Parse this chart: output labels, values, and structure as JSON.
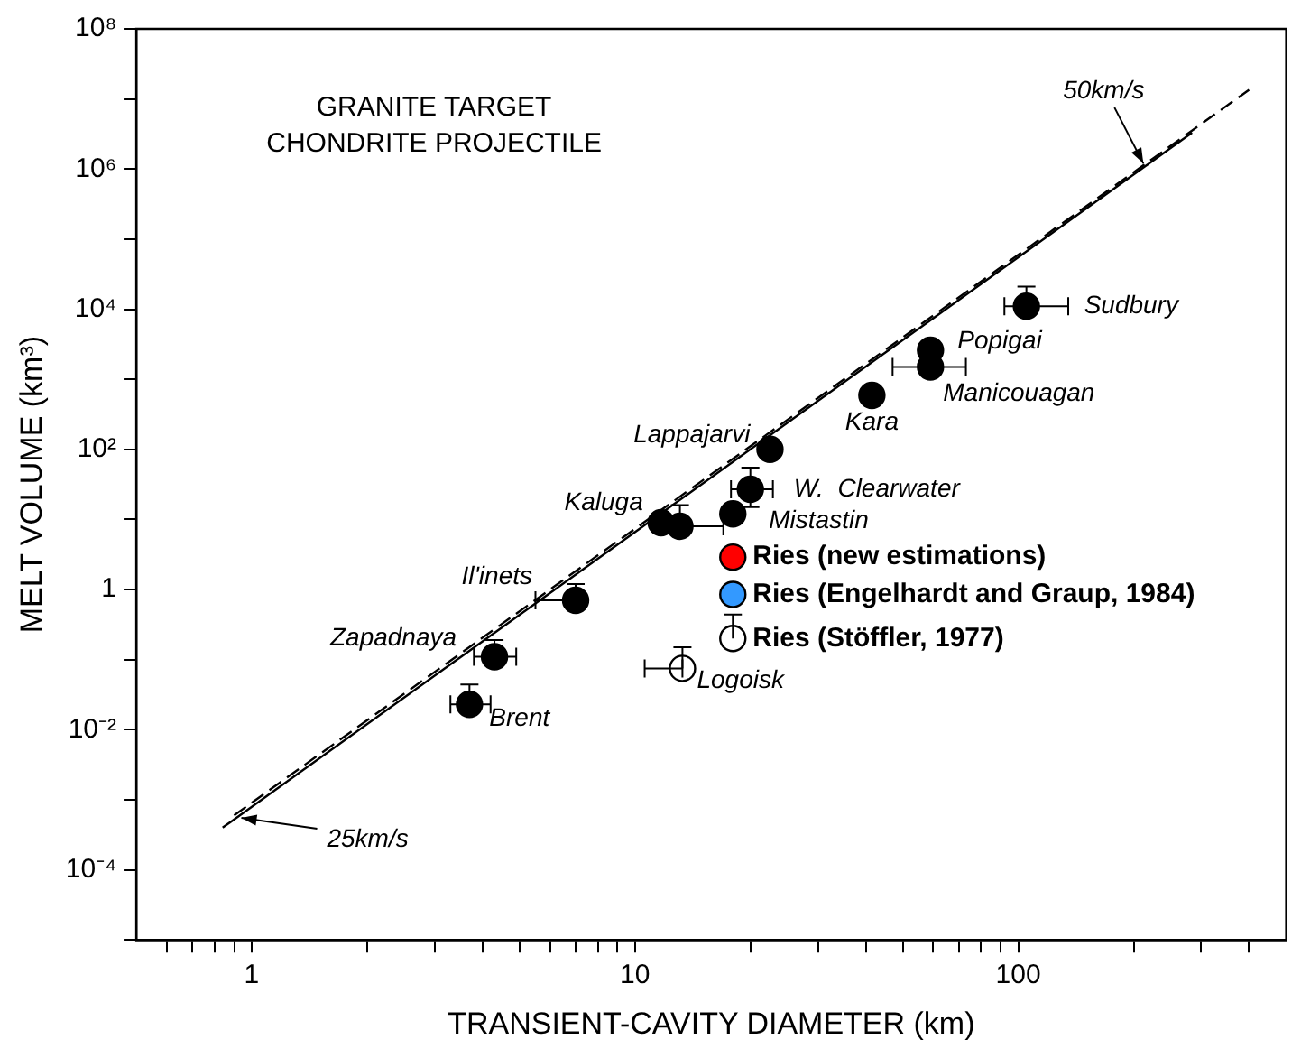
{
  "chart_data": {
    "type": "scatter",
    "xlabel": "TRANSIENT-CAVITY DIAMETER (km)",
    "ylabel": "MELT VOLUME (km³)",
    "log": "xy",
    "grid": false,
    "legend": false,
    "marker": "circle",
    "xlim": [
      0.5,
      500
    ],
    "ylim": [
      1e-05,
      100000000
    ],
    "xticks": [
      {
        "value": 0.6,
        "label": null
      },
      {
        "value": 0.7,
        "label": null
      },
      {
        "value": 0.8,
        "label": null
      },
      {
        "value": 0.9,
        "label": null
      },
      1,
      {
        "value": 2,
        "label": null
      },
      {
        "value": 3,
        "label": null
      },
      {
        "value": 4,
        "label": null
      },
      {
        "value": 5,
        "label": null
      },
      {
        "value": 6,
        "label": null
      },
      {
        "value": 7,
        "label": null
      },
      {
        "value": 8,
        "label": null
      },
      {
        "value": 9,
        "label": null
      },
      10,
      {
        "value": 20,
        "label": null
      },
      {
        "value": 30,
        "label": null
      },
      {
        "value": 40,
        "label": null
      },
      {
        "value": 50,
        "label": null
      },
      {
        "value": 60,
        "label": null
      },
      {
        "value": 70,
        "label": null
      },
      {
        "value": 80,
        "label": null
      },
      {
        "value": 90,
        "label": null
      },
      100,
      {
        "value": 200,
        "label": null
      },
      {
        "value": 300,
        "label": null
      },
      {
        "value": 400,
        "label": null
      }
    ],
    "yticks": [
      {
        "value": 1e-05,
        "label": null
      },
      {
        "value": 0.0001,
        "label": "10⁻⁴"
      },
      {
        "value": 0.001,
        "label": null
      },
      {
        "value": 0.01,
        "label": "10⁻²"
      },
      {
        "value": 0.1,
        "label": null
      },
      1,
      {
        "value": 10,
        "label": null
      },
      {
        "value": 100,
        "label": "10²"
      },
      {
        "value": 1000,
        "label": null
      },
      {
        "value": 10000,
        "label": "10⁴"
      },
      {
        "value": 100000,
        "label": null
      },
      {
        "value": 1000000,
        "label": "10⁶"
      },
      {
        "value": 10000000,
        "label": null
      },
      {
        "value": 100000000,
        "label": "10⁸"
      }
    ],
    "series": [
      {
        "type": "line",
        "color": "#000000",
        "line_style": "solid",
        "marker": "none",
        "x": [
          0.84,
          284
        ],
        "values": [
          0.0004,
          3300000
        ]
      },
      {
        "type": "line",
        "color": "#000000",
        "line_style": "dashed",
        "marker": "none",
        "x": [
          0.9,
          400
        ],
        "values": [
          0.0006,
          13500000
        ]
      },
      {
        "color": "#000000",
        "x": [
          3.7,
          4.3,
          7.0,
          11.7,
          13.1,
          18,
          20,
          22.5,
          41.5,
          59,
          59,
          105
        ],
        "values": [
          0.023,
          0.11,
          0.7,
          9,
          8,
          12,
          27,
          100,
          590,
          1500,
          2600,
          11000
        ],
        "errors": [
          [
            0.023,
            0.044
          ],
          [
            0.11,
            0.19
          ],
          [
            0.7,
            1.2
          ],
          null,
          [
            8,
            16
          ],
          null,
          [
            15,
            55
          ],
          null,
          null,
          null,
          null,
          [
            11000,
            21000
          ]
        ],
        "xerrors": [
          [
            3.3,
            4.2
          ],
          [
            3.8,
            4.9
          ],
          [
            5.5,
            7.0
          ],
          null,
          [
            13.1,
            17
          ],
          null,
          [
            17.8,
            22.9
          ],
          null,
          null,
          [
            47,
            73
          ],
          null,
          [
            92,
            135
          ]
        ]
      },
      {
        "color": "#ffffff",
        "x": [
          13.3
        ],
        "values": [
          0.075
        ],
        "errors": [
          [
            0.075,
            0.15
          ]
        ],
        "xerrors": [
          [
            10.6,
            13.3
          ]
        ]
      },
      {
        "name": "Ries (new estimations)",
        "color": "#ff0000",
        "x": [
          18
        ],
        "values": [
          2.9
        ]
      },
      {
        "name": "Ries (Engelhardt and Graup, 1984)",
        "color": "#3399ff",
        "x": [
          18
        ],
        "values": [
          0.85
        ]
      },
      {
        "name": "Ries (Stöffler, 1977)",
        "color": "#ffffff",
        "x": [
          18
        ],
        "values": [
          0.2
        ],
        "errors": [
          [
            0.2,
            0.44
          ]
        ]
      }
    ],
    "annotations": [
      "GRANITE TARGET\nCHONDRITE PROJECTILE",
      {
        "text": "50km/s",
        "x": 212,
        "y": 1200000
      },
      {
        "text": "25km/s",
        "x": 0.94,
        "y": 0.00055
      },
      {
        "text": "Brent",
        "x": 3.7,
        "y": 0.023
      },
      {
        "text": "Zapadnaya",
        "x": 4.3,
        "y": 0.11
      },
      {
        "text": "Il'inets",
        "x": 7.0,
        "y": 0.7
      },
      {
        "text": "Kaluga",
        "x": 11.7,
        "y": 9
      },
      {
        "text": "Mistastin",
        "x": 18,
        "y": 12
      },
      {
        "text": "W.  Clearwater",
        "x": 20,
        "y": 27
      },
      {
        "text": "Lappajarvi",
        "x": 22.5,
        "y": 100
      },
      {
        "text": "Kara",
        "x": 41.5,
        "y": 590
      },
      {
        "text": "Manicouagan",
        "x": 59,
        "y": 1500
      },
      {
        "text": "Popigai",
        "x": 59,
        "y": 2600
      },
      {
        "text": "Sudbury",
        "x": 105,
        "y": 11000
      },
      {
        "text": "Logoisk",
        "x": 13.3,
        "y": 0.075
      }
    ]
  }
}
